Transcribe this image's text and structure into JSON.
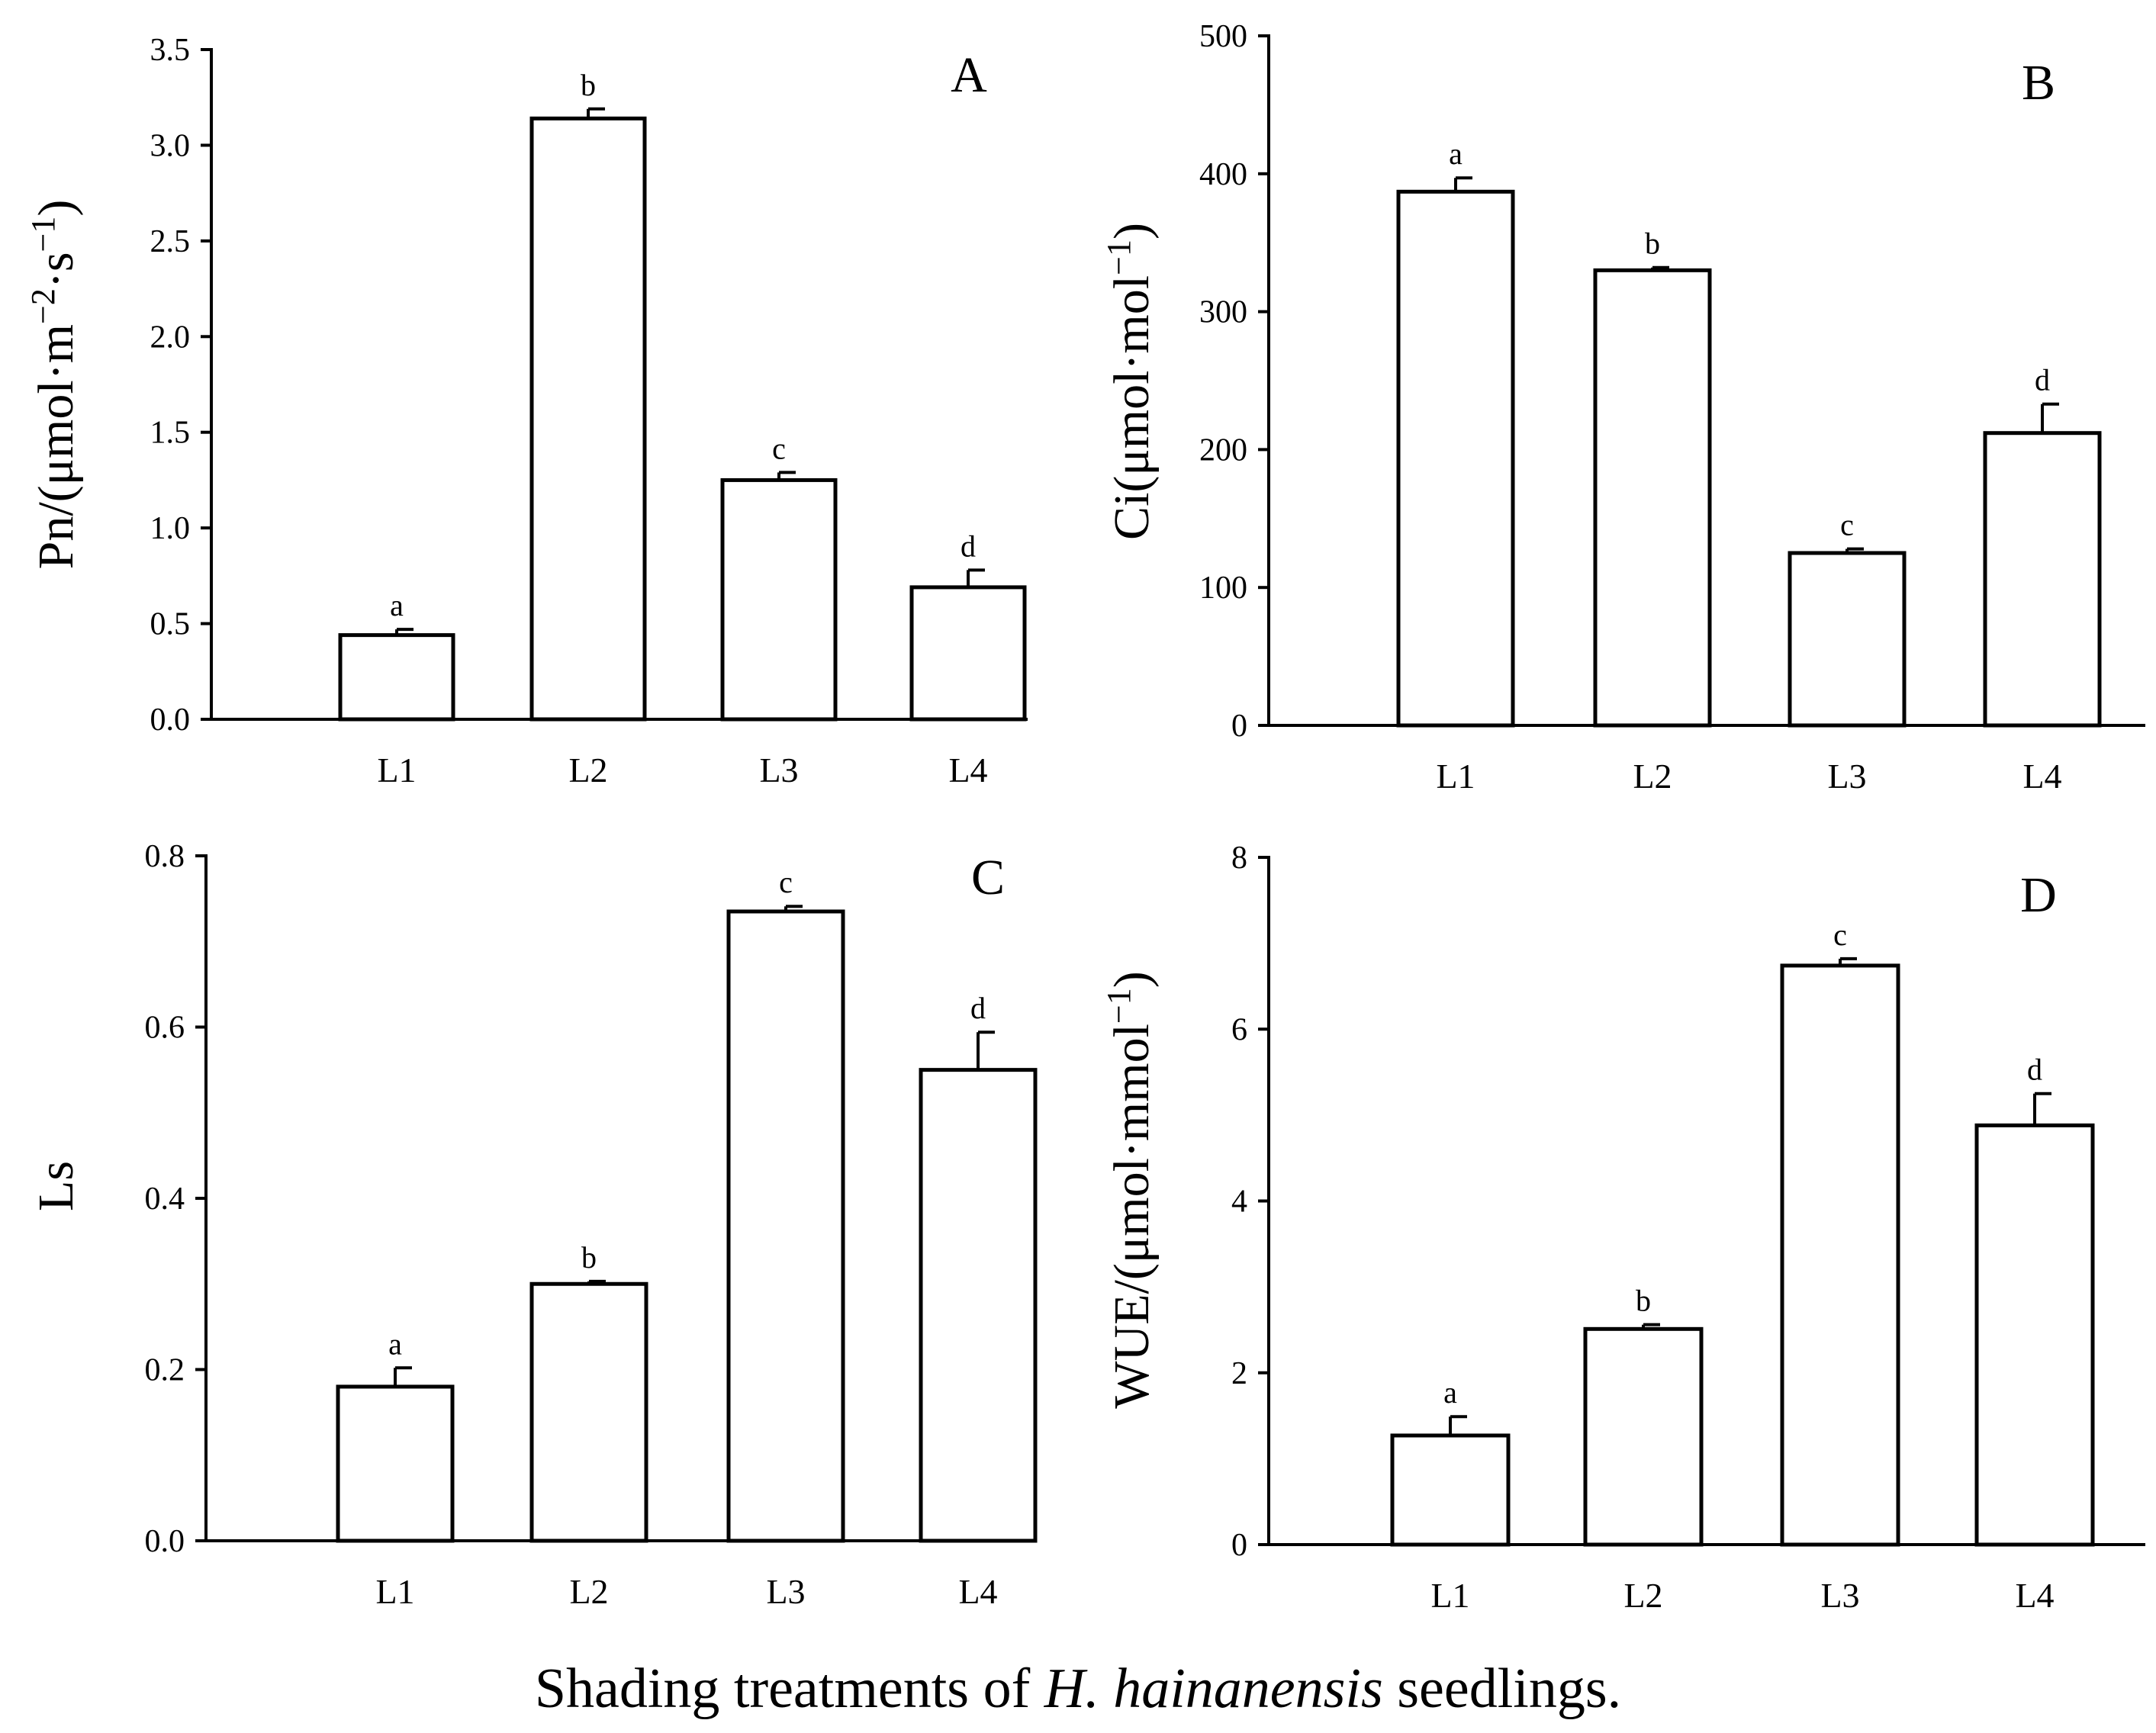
{
  "caption": {
    "prefix": "Shading treatments of ",
    "italic": "H. hainanensis",
    "suffix": " seedlings."
  },
  "chart_data": [
    {
      "type": "bar",
      "panel": "A",
      "categories": [
        "L1",
        "L2",
        "L3",
        "L4"
      ],
      "values": [
        0.44,
        3.14,
        1.25,
        0.69
      ],
      "errors": [
        0.03,
        0.05,
        0.04,
        0.09
      ],
      "significance": [
        "a",
        "b",
        "c",
        "d"
      ],
      "ylabel": {
        "main": "Pn/(μmol·m",
        "sup1": "−2",
        "mid": "·s",
        "sup2": "−1",
        "end": ")"
      },
      "ylim": [
        0,
        3.5
      ],
      "yticks": [
        "0.0",
        "0.5",
        "1.0",
        "1.5",
        "2.0",
        "2.5",
        "3.0",
        "3.5"
      ]
    },
    {
      "type": "bar",
      "panel": "B",
      "categories": [
        "L1",
        "L2",
        "L3",
        "L4"
      ],
      "values": [
        387,
        330,
        125,
        212
      ],
      "errors": [
        10,
        2,
        3,
        21
      ],
      "significance": [
        "a",
        "b",
        "c",
        "d"
      ],
      "ylabel": {
        "main": "Ci(μmol·mol",
        "sup1": "−1",
        "mid": "",
        "sup2": "",
        "end": ")"
      },
      "ylim": [
        0,
        500
      ],
      "yticks": [
        "0",
        "100",
        "200",
        "300",
        "400",
        "500"
      ]
    },
    {
      "type": "bar",
      "panel": "C",
      "categories": [
        "L1",
        "L2",
        "L3",
        "L4"
      ],
      "values": [
        0.18,
        0.3,
        0.735,
        0.55
      ],
      "errors": [
        0.022,
        0.003,
        0.006,
        0.044
      ],
      "significance": [
        "a",
        "b",
        "c",
        "d"
      ],
      "ylabel": {
        "main": "Ls",
        "sup1": "",
        "mid": "",
        "sup2": "",
        "end": ""
      },
      "ylim": [
        0,
        0.8
      ],
      "yticks": [
        "0.0",
        "0.2",
        "0.4",
        "0.6",
        "0.8"
      ]
    },
    {
      "type": "bar",
      "panel": "D",
      "categories": [
        "L1",
        "L2",
        "L3",
        "L4"
      ],
      "values": [
        1.27,
        2.51,
        6.74,
        4.88
      ],
      "errors": [
        0.22,
        0.05,
        0.08,
        0.37
      ],
      "significance": [
        "a",
        "b",
        "c",
        "d"
      ],
      "ylabel": {
        "main": "WUE/(μmol·mmol",
        "sup1": "−1",
        "mid": "",
        "sup2": "",
        "end": ")"
      },
      "ylim": [
        0,
        8
      ],
      "yticks": [
        "0",
        "2",
        "4",
        "6",
        "8"
      ]
    }
  ]
}
